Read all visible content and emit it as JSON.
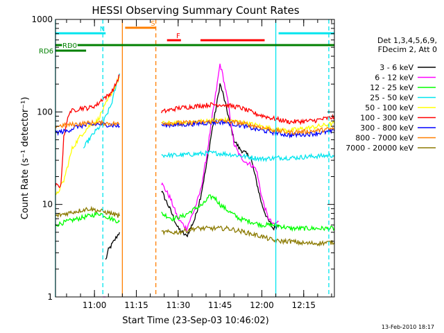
{
  "chart_data": {
    "type": "line",
    "title": "HESSI Observing Summary Count Rates",
    "xlabel": "Start Time (23-Sep-03 10:46:02)",
    "ylabel": "Count Rate (s⁻¹ detector⁻¹)",
    "xscale": "time (HH:MM)",
    "yscale": "log",
    "xlim": [
      "10:46:02",
      "12:26:00"
    ],
    "ylim": [
      1,
      1000
    ],
    "xticks": [
      "11:00",
      "11:15",
      "11:30",
      "11:45",
      "12:00",
      "12:15"
    ],
    "yticks": [
      "1",
      "10",
      "100",
      "1000"
    ],
    "legend_position": "right",
    "legend_header": [
      "Det 1,3,4,5,6,9,",
      "FDecim 2, Att 0"
    ],
    "footer_date": "13-Feb-2010 18:17",
    "flags": [
      {
        "label": "RD0",
        "color": "#008000",
        "start": "10:46",
        "end": "12:26"
      },
      {
        "label": "RD6",
        "color": "#008000",
        "start": "10:46",
        "end": "10:57"
      }
    ],
    "bars": [
      {
        "label": "N",
        "color": "#00e5ee",
        "start": "10:46",
        "end": "11:04"
      },
      {
        "label": "S",
        "color": "#ff7f00",
        "start": "11:11",
        "end": "11:22"
      },
      {
        "label": "F",
        "color": "#ff0000",
        "start": "11:26",
        "end": "11:31"
      },
      {
        "label": "",
        "color": "#ff0000",
        "start": "11:38",
        "end": "12:01"
      },
      {
        "label": "",
        "color": "#00e5ee",
        "start": "12:06",
        "end": "12:26"
      }
    ],
    "vlines": [
      {
        "t": "10:46",
        "color": "#00e5ee",
        "style": "solid"
      },
      {
        "t": "11:03",
        "color": "#00e5ee",
        "style": "dashed"
      },
      {
        "t": "11:10",
        "color": "#ff7f00",
        "style": "solid"
      },
      {
        "t": "11:22",
        "color": "#ff7f00",
        "style": "dashed"
      },
      {
        "t": "12:05",
        "color": "#00e5ee",
        "style": "solid"
      },
      {
        "t": "12:24",
        "color": "#00e5ee",
        "style": "dashed"
      }
    ],
    "series": [
      {
        "name": "3 - 6 keV",
        "color": "#000000",
        "segments": [
          [
            [
              "11:04",
              2.5
            ],
            [
              "11:05",
              3.2
            ],
            [
              "11:07",
              4.0
            ],
            [
              "11:08",
              4.5
            ],
            [
              "11:09",
              5.0
            ]
          ],
          [
            [
              "11:24",
              14
            ],
            [
              "11:27",
              9
            ],
            [
              "11:30",
              5.5
            ],
            [
              "11:33",
              4.5
            ],
            [
              "11:36",
              7
            ],
            [
              "11:38",
              12
            ],
            [
              "11:40",
              25
            ],
            [
              "11:42",
              60
            ],
            [
              "11:44",
              130
            ],
            [
              "11:45",
              200
            ],
            [
              "11:46",
              160
            ],
            [
              "11:48",
              90
            ],
            [
              "11:50",
              50
            ],
            [
              "11:52",
              40
            ],
            [
              "11:54",
              36
            ],
            [
              "11:56",
              32
            ],
            [
              "11:58",
              18
            ],
            [
              "12:00",
              10
            ],
            [
              "12:02",
              7
            ],
            [
              "12:04",
              5.5
            ],
            [
              "12:06",
              6
            ]
          ]
        ]
      },
      {
        "name": "6 - 12 keV",
        "color": "#ff00ff",
        "segments": [
          [
            [
              "11:03",
              1.0
            ],
            [
              "11:04",
              1.0
            ]
          ],
          [
            [
              "11:24",
              17
            ],
            [
              "11:27",
              12
            ],
            [
              "11:30",
              7
            ],
            [
              "11:33",
              5.5
            ],
            [
              "11:36",
              9
            ],
            [
              "11:38",
              14
            ],
            [
              "11:40",
              30
            ],
            [
              "11:42",
              80
            ],
            [
              "11:44",
              200
            ],
            [
              "11:45",
              330
            ],
            [
              "11:46",
              250
            ],
            [
              "11:48",
              120
            ],
            [
              "11:50",
              45
            ],
            [
              "11:52",
              34
            ],
            [
              "11:54",
              29
            ],
            [
              "11:56",
              27
            ],
            [
              "11:58",
              24
            ],
            [
              "12:00",
              12
            ],
            [
              "12:02",
              7.5
            ],
            [
              "12:04",
              6
            ],
            [
              "12:06",
              6.5
            ]
          ]
        ]
      },
      {
        "name": "12 - 25 keV",
        "color": "#00ff00",
        "segments": [
          [
            [
              "10:46",
              6
            ],
            [
              "10:50",
              6.5
            ],
            [
              "10:54",
              7
            ],
            [
              "10:58",
              7.5
            ],
            [
              "11:02",
              8
            ],
            [
              "11:06",
              7
            ],
            [
              "11:09",
              6.5
            ]
          ],
          [
            [
              "11:24",
              8
            ],
            [
              "11:28",
              7
            ],
            [
              "11:32",
              7.5
            ],
            [
              "11:36",
              9
            ],
            [
              "11:39",
              10
            ],
            [
              "11:41",
              12
            ],
            [
              "11:43",
              12
            ],
            [
              "11:45",
              10
            ],
            [
              "11:48",
              8.5
            ],
            [
              "11:52",
              7
            ],
            [
              "11:56",
              6.5
            ],
            [
              "12:00",
              6
            ],
            [
              "12:05",
              6
            ],
            [
              "12:10",
              5.5
            ],
            [
              "12:15",
              5.5
            ],
            [
              "12:20",
              5.5
            ],
            [
              "12:26",
              5.5
            ]
          ]
        ]
      },
      {
        "name": "25 - 50 keV",
        "color": "#00e5ee",
        "segments": [
          [
            [
              "10:56",
              40
            ],
            [
              "10:58",
              50
            ],
            [
              "11:00",
              60
            ],
            [
              "11:03",
              75
            ],
            [
              "11:06",
              120
            ],
            [
              "11:09",
              260
            ]
          ],
          [
            [
              "11:24",
              34
            ],
            [
              "11:30",
              34
            ],
            [
              "11:36",
              35
            ],
            [
              "11:42",
              36
            ],
            [
              "11:48",
              35
            ],
            [
              "11:54",
              33
            ],
            [
              "12:00",
              31
            ],
            [
              "12:06",
              32
            ],
            [
              "12:12",
              32
            ],
            [
              "12:18",
              33
            ],
            [
              "12:26",
              34
            ]
          ]
        ]
      },
      {
        "name": "50 - 100 keV",
        "color": "#ffff00",
        "segments": [
          [
            [
              "10:46",
              12
            ],
            [
              "10:49",
              18
            ],
            [
              "10:52",
              40
            ],
            [
              "10:55",
              55
            ],
            [
              "10:58",
              70
            ],
            [
              "11:01",
              80
            ],
            [
              "11:04",
              120
            ],
            [
              "11:07",
              180
            ],
            [
              "11:09",
              240
            ]
          ],
          [
            [
              "11:24",
              75
            ],
            [
              "11:32",
              76
            ],
            [
              "11:40",
              80
            ],
            [
              "11:46",
              82
            ],
            [
              "11:52",
              78
            ],
            [
              "11:58",
              72
            ],
            [
              "12:04",
              65
            ],
            [
              "12:10",
              63
            ],
            [
              "12:18",
              68
            ],
            [
              "12:26",
              75
            ]
          ]
        ]
      },
      {
        "name": "100 - 300 keV",
        "color": "#ff0000",
        "segments": [
          [
            [
              "10:46",
              16
            ],
            [
              "10:48",
              16
            ],
            [
              "10:49",
              55
            ],
            [
              "10:51",
              100
            ],
            [
              "10:55",
              110
            ],
            [
              "10:58",
              110
            ],
            [
              "11:01",
              120
            ],
            [
              "11:03",
              140
            ],
            [
              "11:05",
              150
            ],
            [
              "11:07",
              180
            ],
            [
              "11:09",
              250
            ]
          ],
          [
            [
              "11:24",
              100
            ],
            [
              "11:30",
              110
            ],
            [
              "11:36",
              115
            ],
            [
              "11:42",
              120
            ],
            [
              "11:46",
              120
            ],
            [
              "11:52",
              112
            ],
            [
              "11:58",
              95
            ],
            [
              "12:04",
              85
            ],
            [
              "12:10",
              78
            ],
            [
              "12:18",
              80
            ],
            [
              "12:26",
              88
            ]
          ]
        ]
      },
      {
        "name": "300 - 800 keV",
        "color": "#0000ff",
        "segments": [
          [
            [
              "10:46",
              60
            ],
            [
              "10:50",
              62
            ],
            [
              "10:54",
              70
            ],
            [
              "10:58",
              72
            ],
            [
              "11:02",
              74
            ],
            [
              "11:06",
              72
            ],
            [
              "11:09",
              70
            ]
          ],
          [
            [
              "11:24",
              72
            ],
            [
              "11:32",
              73
            ],
            [
              "11:40",
              76
            ],
            [
              "11:46",
              78
            ],
            [
              "11:52",
              72
            ],
            [
              "11:58",
              65
            ],
            [
              "12:04",
              60
            ],
            [
              "12:10",
              56
            ],
            [
              "12:18",
              58
            ],
            [
              "12:26",
              62
            ]
          ]
        ]
      },
      {
        "name": "800 - 7000 keV",
        "color": "#ff7f00",
        "segments": [
          [
            [
              "10:46",
              70
            ],
            [
              "10:50",
              72
            ],
            [
              "10:54",
              74
            ],
            [
              "10:58",
              76
            ],
            [
              "11:02",
              76
            ],
            [
              "11:06",
              75
            ],
            [
              "11:09",
              74
            ]
          ],
          [
            [
              "11:24",
              76
            ],
            [
              "11:32",
              76
            ],
            [
              "11:40",
              78
            ],
            [
              "11:46",
              80
            ],
            [
              "11:52",
              76
            ],
            [
              "11:58",
              70
            ],
            [
              "12:04",
              64
            ],
            [
              "12:10",
              60
            ],
            [
              "12:18",
              62
            ],
            [
              "12:26",
              66
            ]
          ]
        ]
      },
      {
        "name": "7000 - 20000 keV",
        "color": "#8b7a00",
        "segments": [
          [
            [
              "10:46",
              7.5
            ],
            [
              "10:50",
              8
            ],
            [
              "10:54",
              8.5
            ],
            [
              "10:58",
              9
            ],
            [
              "11:02",
              8.5
            ],
            [
              "11:06",
              8
            ],
            [
              "11:09",
              7.5
            ]
          ],
          [
            [
              "11:24",
              5
            ],
            [
              "11:30",
              5
            ],
            [
              "11:36",
              5.5
            ],
            [
              "11:42",
              5.5
            ],
            [
              "11:48",
              5.5
            ],
            [
              "11:54",
              5
            ],
            [
              "12:00",
              4.5
            ],
            [
              "12:05",
              4
            ],
            [
              "12:10",
              4
            ],
            [
              "12:15",
              3.8
            ],
            [
              "12:20",
              3.8
            ],
            [
              "12:26",
              3.9
            ]
          ]
        ]
      }
    ]
  }
}
